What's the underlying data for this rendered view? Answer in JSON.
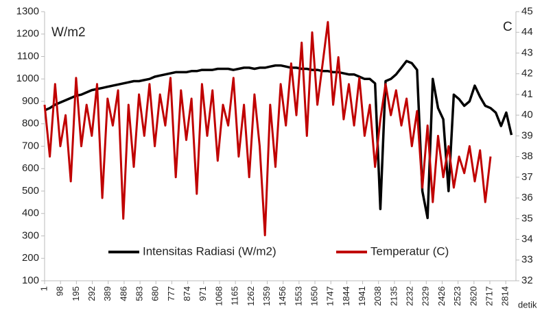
{
  "chart_data": {
    "type": "line",
    "annotations": [
      "W/m2",
      "C"
    ],
    "xlabel": "detik",
    "x": [
      1,
      33,
      65,
      97,
      129,
      161,
      193,
      225,
      257,
      289,
      321,
      353,
      385,
      417,
      449,
      481,
      513,
      545,
      577,
      609,
      641,
      673,
      705,
      737,
      769,
      801,
      833,
      865,
      897,
      929,
      961,
      993,
      1025,
      1057,
      1089,
      1121,
      1153,
      1185,
      1217,
      1249,
      1281,
      1313,
      1345,
      1377,
      1409,
      1441,
      1473,
      1505,
      1537,
      1569,
      1601,
      1633,
      1665,
      1697,
      1729,
      1761,
      1793,
      1825,
      1857,
      1889,
      1921,
      1953,
      1985,
      2017,
      2049,
      2081,
      2113,
      2145,
      2177,
      2209,
      2241,
      2273,
      2305,
      2337,
      2369,
      2401,
      2433,
      2465,
      2497,
      2529,
      2561,
      2593,
      2625,
      2657,
      2689,
      2721,
      2753,
      2785,
      2817,
      2849
    ],
    "series": [
      {
        "name": "Intensitas Radiasi (W/m2)",
        "color": "#000000",
        "values": [
          860,
          870,
          885,
          895,
          905,
          915,
          925,
          930,
          940,
          950,
          955,
          960,
          965,
          970,
          975,
          980,
          985,
          990,
          990,
          995,
          1000,
          1010,
          1015,
          1020,
          1025,
          1030,
          1030,
          1030,
          1035,
          1035,
          1040,
          1040,
          1040,
          1045,
          1045,
          1045,
          1040,
          1045,
          1050,
          1050,
          1045,
          1050,
          1050,
          1055,
          1060,
          1060,
          1055,
          1050,
          1050,
          1045,
          1045,
          1040,
          1040,
          1035,
          1035,
          1030,
          1030,
          1025,
          1020,
          1020,
          1010,
          1000,
          1000,
          980,
          420,
          990,
          1000,
          1020,
          1050,
          1080,
          1070,
          1040,
          500,
          380,
          1000,
          870,
          820,
          500,
          930,
          910,
          880,
          900,
          970,
          920,
          880,
          870,
          850,
          790,
          850,
          750
        ]
      },
      {
        "name": "Temperatur (C)",
        "color": "#c00000",
        "axis": "y2",
        "values": [
          40.5,
          38.0,
          41.5,
          38.5,
          40.0,
          36.8,
          41.8,
          38.5,
          40.5,
          39.0,
          41.5,
          36.0,
          40.8,
          39.5,
          41.2,
          35.0,
          40.5,
          37.5,
          41.0,
          39.0,
          41.5,
          38.5,
          41.0,
          39.5,
          41.8,
          37.0,
          41.2,
          38.8,
          40.8,
          36.2,
          41.5,
          39.0,
          41.2,
          37.8,
          40.5,
          39.5,
          41.8,
          38.0,
          40.5,
          37.0,
          41.0,
          38.5,
          34.2,
          40.5,
          37.5,
          41.5,
          39.5,
          42.5,
          40.0,
          43.5,
          39.0,
          44.0,
          40.5,
          42.5,
          44.5,
          40.5,
          42.8,
          39.8,
          41.5,
          39.5,
          41.8,
          39.0,
          40.5,
          37.5,
          39.8,
          41.5,
          40.0,
          41.2,
          39.5,
          40.8,
          38.5,
          40.2,
          36.5,
          39.5,
          35.8,
          39.0,
          37.0,
          38.5,
          36.5,
          38.0,
          37.2,
          38.5,
          36.8,
          38.3,
          35.8,
          38.0,
          null,
          null,
          null,
          null
        ]
      }
    ],
    "xlim": [
      1,
      2876
    ],
    "xticks": [
      1,
      98,
      195,
      292,
      389,
      486,
      583,
      680,
      777,
      874,
      971,
      1068,
      1165,
      1262,
      1359,
      1456,
      1553,
      1650,
      1747,
      1844,
      1941,
      2038,
      2135,
      2232,
      2329,
      2426,
      2523,
      2620,
      2717,
      2814
    ],
    "ylim": [
      100,
      1300
    ],
    "yticks": [
      100,
      200,
      300,
      400,
      500,
      600,
      700,
      800,
      900,
      1000,
      1100,
      1200,
      1300
    ],
    "y2lim": [
      32,
      45
    ],
    "y2ticks": [
      32,
      33,
      34,
      35,
      36,
      37,
      38,
      39,
      40,
      41,
      42,
      43,
      44,
      45
    ],
    "legend": "bottom"
  }
}
